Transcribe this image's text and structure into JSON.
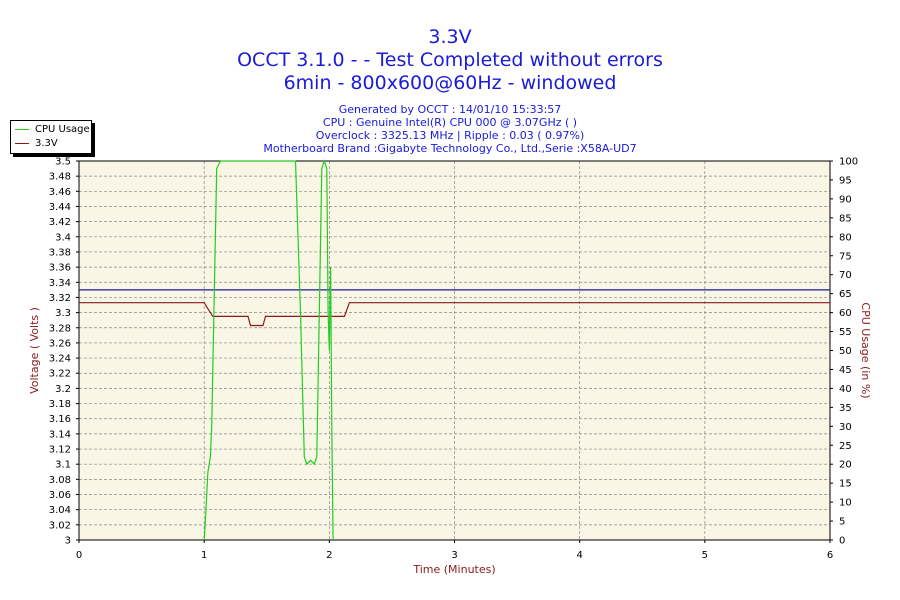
{
  "header": {
    "title": "3.3V",
    "line2": "OCCT 3.1.0 -  - Test Completed without errors",
    "line3": "6min - 800x600@60Hz - windowed",
    "generated": "Generated by OCCT : 14/01/10 15:33:57",
    "cpu": "CPU : Genuine Intel(R) CPU 000 @ 3.07GHz (  )",
    "overclock": "Overclock : 3325.13 MHz | Ripple : 0.03 ( 0.97%)",
    "motherboard": "Motherboard Brand :Gigabyte Technology Co., Ltd.,Serie :X58A-UD7"
  },
  "legend": {
    "items": [
      {
        "label": "CPU Usage",
        "color": "#22cc22"
      },
      {
        "label": "3.3V",
        "color": "#8b1a1a"
      }
    ]
  },
  "colors": {
    "plot_bg": "#f9f6e5",
    "grid": "#888888",
    "reference_line": "#1a1a9c",
    "axis_title": "#8b1a1a",
    "title": "#1a1adc"
  },
  "chart_data": {
    "type": "line",
    "xlabel": "Time (Minutes)",
    "ylabel": "Voltage ( Volts )",
    "y2label": "CPU Usage (in %)",
    "xlim": [
      0,
      6
    ],
    "ylim": [
      3.0,
      3.5
    ],
    "y2lim": [
      0,
      100
    ],
    "xticks": [
      "0",
      "1",
      "2",
      "3",
      "4",
      "5",
      "6"
    ],
    "yticks": [
      "3",
      "3.02",
      "3.04",
      "3.06",
      "3.08",
      "3.1",
      "3.12",
      "3.14",
      "3.16",
      "3.18",
      "3.2",
      "3.22",
      "3.24",
      "3.26",
      "3.28",
      "3.3",
      "3.32",
      "3.34",
      "3.36",
      "3.38",
      "3.4",
      "3.42",
      "3.44",
      "3.46",
      "3.48",
      "3.5"
    ],
    "y2ticks": [
      "0",
      "5",
      "10",
      "15",
      "20",
      "25",
      "30",
      "35",
      "40",
      "45",
      "50",
      "55",
      "60",
      "65",
      "70",
      "75",
      "80",
      "85",
      "90",
      "95",
      "100"
    ],
    "grid": true,
    "legend_position": "top-left",
    "reference_line": 3.33,
    "series": [
      {
        "name": "3.3V",
        "axis": "left",
        "color": "#8b1a1a",
        "x": [
          0,
          1.0,
          1.03,
          1.07,
          1.35,
          1.37,
          1.47,
          1.49,
          2.12,
          2.16,
          6
        ],
        "y": [
          3.313,
          3.313,
          3.305,
          3.295,
          3.295,
          3.283,
          3.283,
          3.295,
          3.295,
          3.313,
          3.313
        ]
      },
      {
        "name": "CPU Usage",
        "axis": "right",
        "color": "#22cc22",
        "x": [
          1.0,
          1.01,
          1.03,
          1.05,
          1.06,
          1.1,
          1.13,
          1.15,
          1.2,
          1.5,
          1.73,
          1.77,
          1.8,
          1.82,
          1.85,
          1.88,
          1.9,
          1.92,
          1.94,
          1.96,
          1.98,
          1.99,
          2.0,
          2.01,
          2.02,
          2.03
        ],
        "y": [
          0,
          5,
          18,
          22,
          30,
          98,
          100,
          100,
          100,
          100,
          100,
          60,
          22,
          20,
          21,
          20,
          22,
          60,
          98,
          100,
          98,
          60,
          50,
          72,
          30,
          0
        ]
      }
    ]
  }
}
